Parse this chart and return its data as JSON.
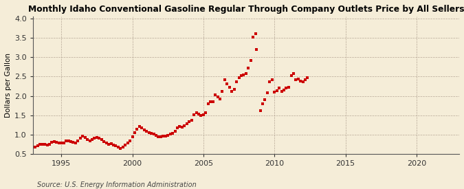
{
  "title": "Monthly Idaho Conventional Gasoline Regular Through Company Outlets Price by All Sellers",
  "ylabel": "Dollars per Gallon",
  "source": "Source: U.S. Energy Information Administration",
  "bg_color": "#f5edd8",
  "plot_bg_color": "#f5edd8",
  "marker_color": "#cc0000",
  "xlim": [
    1993.0,
    2023.0
  ],
  "ylim": [
    0.5,
    4.05
  ],
  "yticks": [
    0.5,
    1.0,
    1.5,
    2.0,
    2.5,
    3.0,
    3.5,
    4.0
  ],
  "xticks": [
    1995,
    2000,
    2005,
    2010,
    2015,
    2020
  ],
  "data": [
    [
      1993.17,
      0.68
    ],
    [
      1993.33,
      0.72
    ],
    [
      1993.5,
      0.75
    ],
    [
      1993.67,
      0.76
    ],
    [
      1993.83,
      0.75
    ],
    [
      1994.0,
      0.74
    ],
    [
      1994.17,
      0.75
    ],
    [
      1994.33,
      0.8
    ],
    [
      1994.5,
      0.82
    ],
    [
      1994.67,
      0.81
    ],
    [
      1994.83,
      0.79
    ],
    [
      1995.0,
      0.78
    ],
    [
      1995.17,
      0.79
    ],
    [
      1995.33,
      0.84
    ],
    [
      1995.5,
      0.85
    ],
    [
      1995.67,
      0.83
    ],
    [
      1995.83,
      0.8
    ],
    [
      1996.0,
      0.79
    ],
    [
      1996.17,
      0.84
    ],
    [
      1996.33,
      0.91
    ],
    [
      1996.5,
      0.96
    ],
    [
      1996.67,
      0.93
    ],
    [
      1996.83,
      0.87
    ],
    [
      1997.0,
      0.85
    ],
    [
      1997.17,
      0.87
    ],
    [
      1997.33,
      0.91
    ],
    [
      1997.5,
      0.93
    ],
    [
      1997.67,
      0.91
    ],
    [
      1997.83,
      0.87
    ],
    [
      1998.0,
      0.83
    ],
    [
      1998.17,
      0.79
    ],
    [
      1998.33,
      0.76
    ],
    [
      1998.5,
      0.77
    ],
    [
      1998.67,
      0.74
    ],
    [
      1998.83,
      0.71
    ],
    [
      1999.0,
      0.68
    ],
    [
      1999.17,
      0.65
    ],
    [
      1999.33,
      0.68
    ],
    [
      1999.5,
      0.74
    ],
    [
      1999.67,
      0.79
    ],
    [
      1999.83,
      0.85
    ],
    [
      2000.0,
      0.94
    ],
    [
      2000.17,
      1.05
    ],
    [
      2000.33,
      1.15
    ],
    [
      2000.5,
      1.21
    ],
    [
      2000.67,
      1.17
    ],
    [
      2000.83,
      1.13
    ],
    [
      2001.0,
      1.09
    ],
    [
      2001.17,
      1.06
    ],
    [
      2001.33,
      1.03
    ],
    [
      2001.5,
      1.01
    ],
    [
      2001.67,
      0.99
    ],
    [
      2001.83,
      0.94
    ],
    [
      2002.0,
      0.94
    ],
    [
      2002.17,
      0.96
    ],
    [
      2002.33,
      0.97
    ],
    [
      2002.5,
      0.99
    ],
    [
      2002.67,
      1.01
    ],
    [
      2002.83,
      1.04
    ],
    [
      2003.0,
      1.09
    ],
    [
      2003.17,
      1.18
    ],
    [
      2003.33,
      1.22
    ],
    [
      2003.5,
      1.2
    ],
    [
      2003.67,
      1.23
    ],
    [
      2003.83,
      1.28
    ],
    [
      2004.0,
      1.33
    ],
    [
      2004.17,
      1.38
    ],
    [
      2004.33,
      1.52
    ],
    [
      2004.5,
      1.57
    ],
    [
      2004.67,
      1.53
    ],
    [
      2004.83,
      1.49
    ],
    [
      2005.0,
      1.52
    ],
    [
      2005.17,
      1.57
    ],
    [
      2005.33,
      1.8
    ],
    [
      2005.5,
      1.85
    ],
    [
      2005.67,
      1.85
    ],
    [
      2005.83,
      2.02
    ],
    [
      2006.0,
      1.97
    ],
    [
      2006.17,
      1.92
    ],
    [
      2006.33,
      2.12
    ],
    [
      2006.5,
      2.42
    ],
    [
      2006.67,
      2.32
    ],
    [
      2006.83,
      2.22
    ],
    [
      2007.0,
      2.12
    ],
    [
      2007.17,
      2.17
    ],
    [
      2007.33,
      2.37
    ],
    [
      2007.5,
      2.47
    ],
    [
      2007.67,
      2.52
    ],
    [
      2007.83,
      2.54
    ],
    [
      2008.0,
      2.57
    ],
    [
      2008.17,
      2.72
    ],
    [
      2008.33,
      2.92
    ],
    [
      2008.5,
      3.52
    ],
    [
      2008.67,
      3.6
    ],
    [
      2008.75,
      3.2
    ],
    [
      2009.0,
      1.62
    ],
    [
      2009.17,
      1.8
    ],
    [
      2009.33,
      1.9
    ],
    [
      2009.5,
      2.08
    ],
    [
      2009.67,
      2.37
    ],
    [
      2009.83,
      2.41
    ],
    [
      2010.0,
      2.1
    ],
    [
      2010.17,
      2.14
    ],
    [
      2010.33,
      2.2
    ],
    [
      2010.5,
      2.12
    ],
    [
      2010.67,
      2.16
    ],
    [
      2010.83,
      2.2
    ],
    [
      2011.0,
      2.22
    ],
    [
      2011.17,
      2.52
    ],
    [
      2011.33,
      2.57
    ],
    [
      2011.5,
      2.42
    ],
    [
      2011.67,
      2.43
    ],
    [
      2011.83,
      2.39
    ],
    [
      2012.0,
      2.37
    ],
    [
      2012.17,
      2.42
    ],
    [
      2012.33,
      2.47
    ]
  ]
}
